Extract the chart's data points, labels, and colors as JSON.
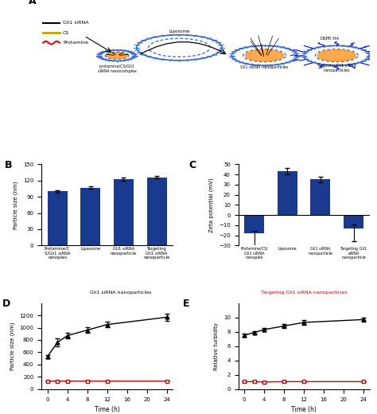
{
  "panel_B": {
    "categories": [
      "Protamine/C\nS/Gli1 siRNA\nnanoplex",
      "Liposome",
      "Gli1 siRNA\nnanoparticle",
      "Targeting\nGli1 siRNA\nnanoparticle"
    ],
    "values": [
      100,
      107,
      122,
      126
    ],
    "errors": [
      2,
      2,
      3,
      2
    ],
    "ylabel": "Particle size (nm)",
    "ylim": [
      0,
      150
    ],
    "yticks": [
      0,
      30,
      60,
      90,
      120,
      150
    ],
    "bar_color": "#1a3a8f",
    "label": "B"
  },
  "panel_C": {
    "categories": [
      "Protamine/CS/\nGli1 siRNA\nnanoplex",
      "Liposome",
      "Gli1 siRNA\nnanoparticle",
      "Targeting Gli1\nsiRNA\nnanoparticle"
    ],
    "values": [
      -18,
      43,
      35,
      -13
    ],
    "errors": [
      2,
      3,
      3,
      4
    ],
    "ylabel": "Zeta potential (mV)",
    "ylim": [
      -30,
      50
    ],
    "yticks": [
      -30,
      -20,
      -10,
      0,
      10,
      20,
      30,
      40,
      50
    ],
    "bar_color": "#1a3a8f",
    "label": "C"
  },
  "panel_D": {
    "time": [
      0,
      2,
      4,
      8,
      12,
      24
    ],
    "gli1_values": [
      530,
      760,
      870,
      960,
      1050,
      1170
    ],
    "gli1_errors": [
      30,
      60,
      40,
      50,
      45,
      55
    ],
    "target_values": [
      130,
      132,
      130,
      132,
      130,
      130
    ],
    "target_errors": [
      5,
      5,
      5,
      5,
      5,
      5
    ],
    "ylabel": "Particle size (nm)",
    "xlabel": "Time (h)",
    "ylim": [
      0,
      1400
    ],
    "yticks": [
      0,
      200,
      400,
      600,
      800,
      1000,
      1200
    ],
    "xticks": [
      0,
      4,
      8,
      12,
      16,
      20,
      24
    ],
    "gli1_color": "#000000",
    "target_color": "#cc0000",
    "gli1_label": "Gli1 siRNA nanoparticles",
    "target_label": "Targeting Gli1 siRNA nanoparticles",
    "label": "D"
  },
  "panel_E": {
    "time": [
      0,
      2,
      4,
      8,
      12,
      24
    ],
    "gli1_values": [
      7.5,
      7.9,
      8.3,
      8.8,
      9.3,
      9.7
    ],
    "gli1_errors": [
      0.2,
      0.2,
      0.2,
      0.3,
      0.3,
      0.3
    ],
    "target_values": [
      1.05,
      1.05,
      1.0,
      1.05,
      1.05,
      1.05
    ],
    "target_errors": [
      0.05,
      0.05,
      0.05,
      0.05,
      0.05,
      0.05
    ],
    "ylabel": "Relative turbidity",
    "xlabel": "Time (h)",
    "ylim": [
      0,
      12
    ],
    "yticks": [
      0,
      2,
      4,
      6,
      8,
      10
    ],
    "xticks": [
      0,
      4,
      8,
      12,
      16,
      20,
      24
    ],
    "gli1_color": "#000000",
    "target_color": "#cc0000",
    "gli1_label": "Gli1 siRNA nanoparticles",
    "target_label": "Targeting Gli1 siRNA nanoparticles",
    "label": "E"
  },
  "panel_A_label": "A",
  "figure_bg": "#ffffff"
}
